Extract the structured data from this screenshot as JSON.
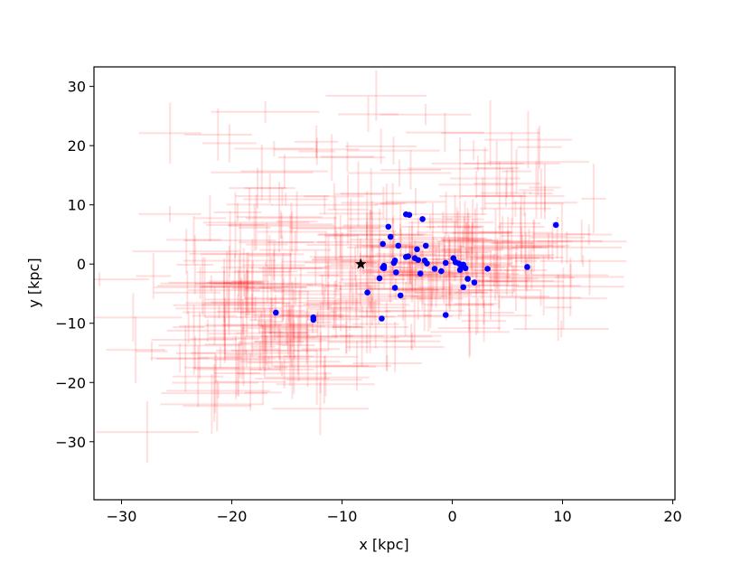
{
  "chart_data": {
    "type": "scatter",
    "title": "",
    "xlabel": "x [kpc]",
    "ylabel": "y [kpc]",
    "xlim": [
      -32.5,
      20.2
    ],
    "ylim": [
      -39.8,
      33.3
    ],
    "xticks": [
      -30,
      -20,
      -10,
      0,
      10,
      20
    ],
    "xtick_labels": [
      "−30",
      "−20",
      "−10",
      "0",
      "10",
      "20"
    ],
    "yticks": [
      -30,
      -20,
      -10,
      0,
      10,
      20,
      30
    ],
    "ytick_labels": [
      "−30",
      "−20",
      "−10",
      "0",
      "10",
      "20",
      "30"
    ],
    "grid": false,
    "legend": "none",
    "marker_point": {
      "x": -8.3,
      "y": 0.0,
      "marker": "star",
      "color": "#000000"
    },
    "blue_points": {
      "color": "#0000ff",
      "x": [
        -4.2,
        -3.9,
        -2.7,
        -5.8,
        -5.6,
        -6.3,
        -4.9,
        -3.2,
        -2.4,
        -4.2,
        -4.0,
        -6.2,
        -6.2,
        -5.3,
        -5.2,
        -6.6,
        -5.1,
        -5.2,
        -4.7,
        -7.7,
        -6.4,
        -3.4,
        -3.1,
        -2.9,
        -2.5,
        -2.3,
        -1.6,
        -1.0,
        -0.6,
        0.1,
        0.3,
        0.6,
        0.8,
        1.0,
        1.2,
        0.7,
        1.0,
        1.4,
        2.0,
        3.2,
        6.8,
        9.4,
        -16.0,
        -12.6,
        -12.6,
        -6.3,
        -0.6
      ],
      "y": [
        8.4,
        8.3,
        7.6,
        6.3,
        4.6,
        3.4,
        3.1,
        2.5,
        3.1,
        1.2,
        1.3,
        -0.3,
        -0.7,
        0.2,
        0.6,
        -2.4,
        -1.4,
        -4.0,
        -5.3,
        -4.8,
        -9.2,
        1.0,
        0.7,
        -1.6,
        0.6,
        0.1,
        -0.8,
        -1.2,
        0.2,
        1.0,
        0.3,
        0.1,
        -0.3,
        -0.1,
        -0.7,
        -1.0,
        -3.9,
        -2.5,
        -3.1,
        -0.8,
        -0.5,
        6.6,
        -8.2,
        -9.0,
        -9.4,
        -0.6,
        -8.6
      ]
    },
    "error_cloud": {
      "color": "#ff0000",
      "opacity": 0.13,
      "description_count": 420
    }
  }
}
